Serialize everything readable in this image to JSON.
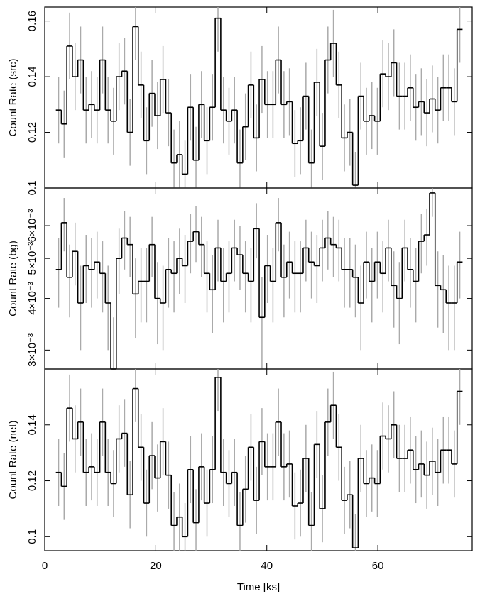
{
  "chart_data": [
    {
      "type": "step",
      "ylabel": "Count Rate (src)",
      "color": "#000000",
      "error_color": "#aaaaaa",
      "error": 0.012,
      "xlim": [
        0,
        77
      ],
      "xticks": [
        0,
        20,
        40,
        60
      ],
      "ylim": [
        0.1,
        0.165
      ],
      "yticks": [
        0.1,
        0.12,
        0.14,
        0.16
      ],
      "x": [
        2.5,
        3.49,
        4.48,
        5.47,
        6.46,
        7.45,
        8.44,
        9.43,
        10.42,
        11.41,
        12.4,
        13.39,
        14.38,
        15.37,
        16.36,
        17.35,
        18.34,
        19.33,
        20.32,
        21.31,
        22.3,
        23.29,
        24.28,
        25.27,
        26.26,
        27.25,
        28.24,
        29.23,
        30.22,
        31.21,
        32.2,
        33.19,
        34.18,
        35.17,
        36.16,
        37.15,
        38.14,
        39.13,
        40.12,
        41.11,
        42.1,
        43.09,
        44.08,
        45.07,
        46.06,
        47.05,
        48.04,
        49.03,
        50.02,
        51.01,
        52,
        52.99,
        53.98,
        54.97,
        55.96,
        56.95,
        57.94,
        58.93,
        59.92,
        60.91,
        61.9,
        62.89,
        63.88,
        64.87,
        65.86,
        66.85,
        67.84,
        68.83,
        69.82,
        70.81,
        71.8,
        72.79,
        73.78,
        74.77
      ],
      "values": [
        0.128,
        0.123,
        0.151,
        0.14,
        0.146,
        0.128,
        0.13,
        0.128,
        0.146,
        0.128,
        0.124,
        0.14,
        0.142,
        0.12,
        0.158,
        0.137,
        0.117,
        0.134,
        0.126,
        0.139,
        0.127,
        0.109,
        0.112,
        0.105,
        0.129,
        0.11,
        0.13,
        0.117,
        0.129,
        0.161,
        0.128,
        0.124,
        0.128,
        0.109,
        0.122,
        0.137,
        0.118,
        0.139,
        0.13,
        0.13,
        0.146,
        0.13,
        0.131,
        0.116,
        0.117,
        0.133,
        0.109,
        0.138,
        0.115,
        0.146,
        0.152,
        0.137,
        0.118,
        0.12,
        0.101,
        0.133,
        0.124,
        0.126,
        0.124,
        0.141,
        0.14,
        0.145,
        0.133,
        0.133,
        0.136,
        0.129,
        0.131,
        0.127,
        0.132,
        0.128,
        0.136,
        0.136,
        0.131,
        0.157
      ]
    },
    {
      "type": "step",
      "ylabel": "Count Rate (bg)",
      "color": "#000000",
      "error_color": "#aaaaaa",
      "error": 0.0009,
      "xlim": [
        0,
        77
      ],
      "xticks": [
        0,
        20,
        40,
        60
      ],
      "yscale": "log",
      "ylim": [
        0.0027,
        0.0074
      ],
      "yticks": [
        {
          "value": 0.003,
          "label": "3×10⁻³"
        },
        {
          "value": 0.004,
          "label": "4×10⁻³"
        },
        {
          "value": 0.005,
          "label": "5×10⁻³"
        },
        {
          "value": 0.006,
          "label": "6×10⁻³"
        }
      ],
      "values": [
        0.0047,
        0.0061,
        0.0045,
        0.0052,
        0.0039,
        0.0048,
        0.0047,
        0.0049,
        0.0046,
        0.0039,
        0.0027,
        0.005,
        0.0056,
        0.0054,
        0.0041,
        0.0044,
        0.0044,
        0.0054,
        0.004,
        0.0039,
        0.0047,
        0.0046,
        0.005,
        0.0048,
        0.0055,
        0.0058,
        0.0054,
        0.0046,
        0.0042,
        0.0053,
        0.0044,
        0.0046,
        0.0053,
        0.0051,
        0.0046,
        0.0044,
        0.0059,
        0.0036,
        0.0048,
        0.0044,
        0.0061,
        0.0045,
        0.0049,
        0.0046,
        0.0046,
        0.0053,
        0.0049,
        0.0048,
        0.0053,
        0.0056,
        0.0054,
        0.0053,
        0.0047,
        0.0047,
        0.0045,
        0.0039,
        0.0049,
        0.0044,
        0.0049,
        0.0046,
        0.0053,
        0.0043,
        0.004,
        0.0053,
        0.0047,
        0.0044,
        0.0055,
        0.0057,
        0.0072,
        0.0043,
        0.0042,
        0.0039,
        0.0039,
        0.0049
      ]
    },
    {
      "type": "step",
      "ylabel": "Count Rate (net)",
      "xlabel": "Time [ks]",
      "color": "#000000",
      "error_color": "#aaaaaa",
      "error": 0.012,
      "xlim": [
        0,
        77
      ],
      "xticks": [
        0,
        20,
        40,
        60
      ],
      "ylim": [
        0.095,
        0.16
      ],
      "yticks": [
        0.1,
        0.12,
        0.14
      ],
      "values": [
        0.123,
        0.118,
        0.146,
        0.135,
        0.141,
        0.123,
        0.125,
        0.123,
        0.141,
        0.123,
        0.119,
        0.135,
        0.137,
        0.115,
        0.153,
        0.132,
        0.112,
        0.129,
        0.121,
        0.134,
        0.122,
        0.104,
        0.107,
        0.1,
        0.124,
        0.105,
        0.125,
        0.112,
        0.124,
        0.157,
        0.123,
        0.119,
        0.123,
        0.104,
        0.117,
        0.132,
        0.113,
        0.134,
        0.125,
        0.125,
        0.141,
        0.125,
        0.126,
        0.111,
        0.112,
        0.128,
        0.104,
        0.133,
        0.11,
        0.141,
        0.147,
        0.132,
        0.113,
        0.115,
        0.096,
        0.128,
        0.119,
        0.121,
        0.119,
        0.136,
        0.135,
        0.14,
        0.128,
        0.128,
        0.131,
        0.124,
        0.126,
        0.122,
        0.127,
        0.123,
        0.131,
        0.131,
        0.126,
        0.152
      ]
    }
  ]
}
